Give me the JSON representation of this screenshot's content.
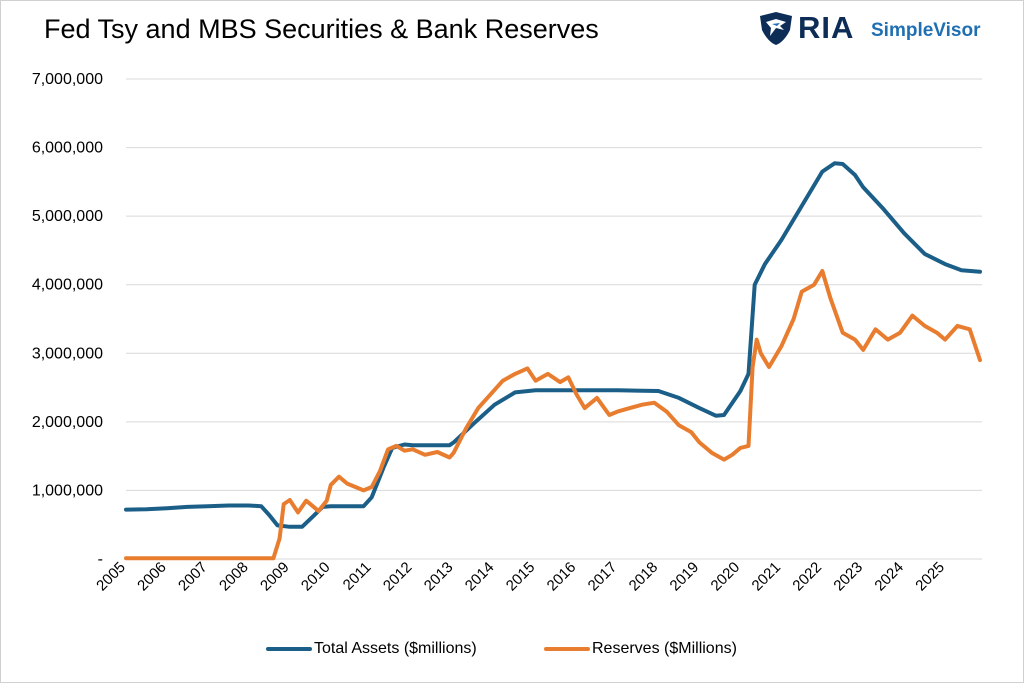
{
  "title": "Fed Tsy and MBS Securities & Bank Reserves",
  "brand": {
    "ria": "RIA",
    "simplevisor": "SimpleVisor",
    "logo_icon": "eagle-shield-icon"
  },
  "colors": {
    "total_assets": "#1b5f88",
    "reserves": "#e97d2f",
    "grid": "#d9d9d9"
  },
  "chart_data": {
    "type": "line",
    "title": "Fed Tsy and MBS Securities & Bank Reserves",
    "xlabel": "",
    "ylabel": "",
    "xlim": [
      2005,
      2025.9
    ],
    "ylim": [
      0,
      7000000
    ],
    "grid": true,
    "legend_position": "bottom",
    "x_ticks": [
      "2005",
      "2006",
      "2007",
      "2008",
      "2009",
      "2010",
      "2011",
      "2012",
      "2013",
      "2014",
      "2015",
      "2016",
      "2017",
      "2018",
      "2019",
      "2020",
      "2021",
      "2022",
      "2023",
      "2024",
      "2025"
    ],
    "y_ticks": [
      "-",
      "1,000,000",
      "2,000,000",
      "3,000,000",
      "4,000,000",
      "5,000,000",
      "6,000,000",
      "7,000,000"
    ],
    "y_tick_values": [
      0,
      1000000,
      2000000,
      3000000,
      4000000,
      5000000,
      6000000,
      7000000
    ],
    "series": [
      {
        "name": "Total Assets ($millions)",
        "points": [
          [
            2005.0,
            720000
          ],
          [
            2005.5,
            725000
          ],
          [
            2006.0,
            740000
          ],
          [
            2006.5,
            760000
          ],
          [
            2007.0,
            770000
          ],
          [
            2007.5,
            780000
          ],
          [
            2008.0,
            780000
          ],
          [
            2008.3,
            770000
          ],
          [
            2008.5,
            640000
          ],
          [
            2008.7,
            490000
          ],
          [
            2009.0,
            470000
          ],
          [
            2009.3,
            470000
          ],
          [
            2009.6,
            640000
          ],
          [
            2009.8,
            760000
          ],
          [
            2010.0,
            770000
          ],
          [
            2010.5,
            770000
          ],
          [
            2010.8,
            770000
          ],
          [
            2011.0,
            900000
          ],
          [
            2011.3,
            1350000
          ],
          [
            2011.5,
            1620000
          ],
          [
            2011.8,
            1670000
          ],
          [
            2012.0,
            1660000
          ],
          [
            2012.5,
            1660000
          ],
          [
            2012.9,
            1660000
          ],
          [
            2013.0,
            1700000
          ],
          [
            2013.5,
            1980000
          ],
          [
            2014.0,
            2250000
          ],
          [
            2014.5,
            2430000
          ],
          [
            2015.0,
            2460000
          ],
          [
            2016.0,
            2460000
          ],
          [
            2017.0,
            2460000
          ],
          [
            2018.0,
            2450000
          ],
          [
            2018.5,
            2350000
          ],
          [
            2019.0,
            2200000
          ],
          [
            2019.4,
            2090000
          ],
          [
            2019.6,
            2100000
          ],
          [
            2020.0,
            2450000
          ],
          [
            2020.2,
            2700000
          ],
          [
            2020.35,
            4000000
          ],
          [
            2020.6,
            4300000
          ],
          [
            2021.0,
            4650000
          ],
          [
            2021.5,
            5150000
          ],
          [
            2022.0,
            5650000
          ],
          [
            2022.3,
            5770000
          ],
          [
            2022.5,
            5760000
          ],
          [
            2022.8,
            5600000
          ],
          [
            2023.0,
            5420000
          ],
          [
            2023.5,
            5100000
          ],
          [
            2024.0,
            4750000
          ],
          [
            2024.5,
            4450000
          ],
          [
            2025.0,
            4300000
          ],
          [
            2025.4,
            4210000
          ],
          [
            2025.85,
            4190000
          ]
        ]
      },
      {
        "name": "Reserves ($Millions)",
        "points": [
          [
            2005.0,
            10000
          ],
          [
            2006.0,
            10000
          ],
          [
            2007.0,
            10000
          ],
          [
            2008.0,
            10000
          ],
          [
            2008.6,
            10000
          ],
          [
            2008.75,
            300000
          ],
          [
            2008.85,
            800000
          ],
          [
            2009.0,
            860000
          ],
          [
            2009.2,
            680000
          ],
          [
            2009.4,
            850000
          ],
          [
            2009.5,
            800000
          ],
          [
            2009.7,
            700000
          ],
          [
            2009.9,
            850000
          ],
          [
            2010.0,
            1080000
          ],
          [
            2010.2,
            1200000
          ],
          [
            2010.4,
            1100000
          ],
          [
            2010.6,
            1050000
          ],
          [
            2010.8,
            1000000
          ],
          [
            2011.0,
            1050000
          ],
          [
            2011.2,
            1280000
          ],
          [
            2011.4,
            1600000
          ],
          [
            2011.6,
            1650000
          ],
          [
            2011.8,
            1580000
          ],
          [
            2012.0,
            1600000
          ],
          [
            2012.3,
            1520000
          ],
          [
            2012.6,
            1560000
          ],
          [
            2012.9,
            1480000
          ],
          [
            2013.0,
            1550000
          ],
          [
            2013.3,
            1900000
          ],
          [
            2013.6,
            2200000
          ],
          [
            2013.9,
            2400000
          ],
          [
            2014.2,
            2600000
          ],
          [
            2014.5,
            2700000
          ],
          [
            2014.8,
            2780000
          ],
          [
            2015.0,
            2600000
          ],
          [
            2015.3,
            2700000
          ],
          [
            2015.6,
            2580000
          ],
          [
            2015.8,
            2650000
          ],
          [
            2016.0,
            2400000
          ],
          [
            2016.2,
            2200000
          ],
          [
            2016.5,
            2350000
          ],
          [
            2016.8,
            2100000
          ],
          [
            2017.0,
            2150000
          ],
          [
            2017.3,
            2200000
          ],
          [
            2017.6,
            2250000
          ],
          [
            2017.9,
            2280000
          ],
          [
            2018.2,
            2150000
          ],
          [
            2018.5,
            1950000
          ],
          [
            2018.8,
            1850000
          ],
          [
            2019.0,
            1700000
          ],
          [
            2019.3,
            1550000
          ],
          [
            2019.6,
            1450000
          ],
          [
            2019.8,
            1520000
          ],
          [
            2020.0,
            1620000
          ],
          [
            2020.2,
            1650000
          ],
          [
            2020.3,
            2800000
          ],
          [
            2020.4,
            3200000
          ],
          [
            2020.5,
            3000000
          ],
          [
            2020.7,
            2800000
          ],
          [
            2021.0,
            3100000
          ],
          [
            2021.3,
            3500000
          ],
          [
            2021.5,
            3900000
          ],
          [
            2021.8,
            4000000
          ],
          [
            2022.0,
            4200000
          ],
          [
            2022.2,
            3800000
          ],
          [
            2022.5,
            3300000
          ],
          [
            2022.8,
            3200000
          ],
          [
            2023.0,
            3050000
          ],
          [
            2023.3,
            3350000
          ],
          [
            2023.6,
            3200000
          ],
          [
            2023.9,
            3300000
          ],
          [
            2024.2,
            3550000
          ],
          [
            2024.5,
            3400000
          ],
          [
            2024.8,
            3300000
          ],
          [
            2025.0,
            3200000
          ],
          [
            2025.3,
            3400000
          ],
          [
            2025.6,
            3350000
          ],
          [
            2025.85,
            2900000
          ]
        ]
      }
    ]
  }
}
